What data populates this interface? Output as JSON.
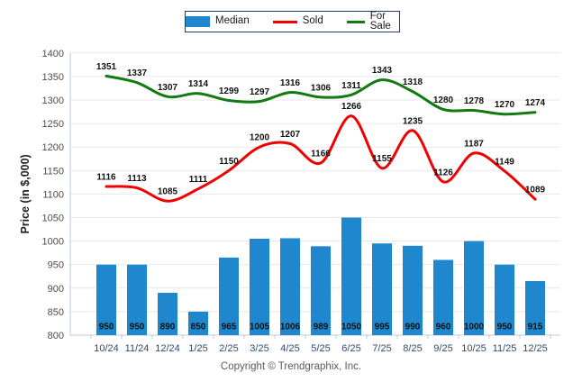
{
  "legend": {
    "median_label": "Median",
    "sold_label": "Sold",
    "forsale_label": "For Sale"
  },
  "chart_data": {
    "type": "bar",
    "title": "",
    "xlabel": "",
    "ylabel": "Price (in $,000)",
    "ylim": [
      800,
      1400
    ],
    "ytick_step": 50,
    "grid": true,
    "legend_position": "top-center",
    "categories": [
      "10/24",
      "11/24",
      "12/24",
      "1/25",
      "2/25",
      "3/25",
      "4/25",
      "5/25",
      "6/25",
      "7/25",
      "8/25",
      "9/25",
      "10/25",
      "11/25",
      "12/25"
    ],
    "series": [
      {
        "name": "Median",
        "type": "bar",
        "color": "#1e87cd",
        "values": [
          950,
          950,
          890,
          850,
          965,
          1005,
          1006,
          989,
          1050,
          995,
          990,
          960,
          1000,
          950,
          915
        ]
      },
      {
        "name": "Sold",
        "type": "line",
        "color": "#f00000",
        "values": [
          1116,
          1113,
          1085,
          1111,
          1150,
          1200,
          1207,
          1166,
          1266,
          1155,
          1235,
          1126,
          1187,
          1149,
          1089
        ]
      },
      {
        "name": "For Sale",
        "type": "line",
        "color": "#117a11",
        "values": [
          1351,
          1337,
          1307,
          1314,
          1299,
          1297,
          1316,
          1306,
          1311,
          1343,
          1318,
          1280,
          1278,
          1270,
          1274
        ]
      }
    ],
    "colors": {
      "bar": "#1e87cd",
      "sold_line": "#f00000",
      "forsale_line": "#117a11",
      "grid_line": "#e7e7e7",
      "axis_line": "#b9c9dc",
      "y_tick_text": "#4d4d4d",
      "x_tick_text": "#2e4d73",
      "data_label_text": "#111111"
    }
  },
  "footer": {
    "copyright": "Copyright © Trendgraphix, Inc."
  }
}
